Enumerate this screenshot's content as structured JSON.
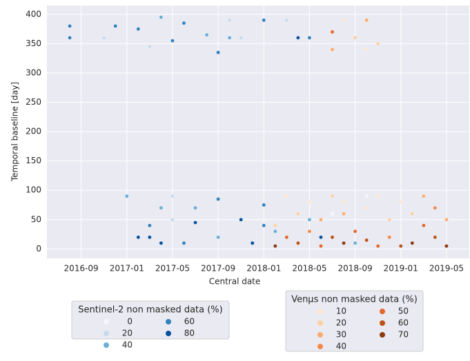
{
  "chart_data": {
    "type": "scatter",
    "x_label": "Central date",
    "y_label": "Temporal baseline [day]",
    "xlim": [
      "2016-06",
      "2019-07"
    ],
    "ylim": [
      -16,
      415
    ],
    "xticks": [
      "2016-09",
      "2017-01",
      "2017-05",
      "2017-09",
      "2018-01",
      "2018-05",
      "2018-09",
      "2019-01",
      "2019-05"
    ],
    "yticks": [
      0,
      50,
      100,
      150,
      200,
      250,
      300,
      350,
      400
    ],
    "grid": true,
    "background": "#eaeaf2",
    "series": [
      {
        "name": "Sentinel-2 non masked data (%)",
        "levels": [
          {
            "value": 0,
            "color": "#f4f6fa"
          },
          {
            "value": 20,
            "color": "#c6dbef"
          },
          {
            "value": 40,
            "color": "#6baed6"
          },
          {
            "value": 60,
            "color": "#3182bd"
          },
          {
            "value": 80,
            "color": "#08519c"
          }
        ],
        "x": [
          "2016-08",
          "2016-08",
          "2016-08",
          "2016-11",
          "2016-12",
          "2017-01",
          "2017-02",
          "2017-02",
          "2017-03",
          "2017-03",
          "2017-03",
          "2017-04",
          "2017-04",
          "2017-04",
          "2017-05",
          "2017-05",
          "2017-05",
          "2017-06",
          "2017-06",
          "2017-07",
          "2017-07",
          "2017-08",
          "2017-09",
          "2017-09",
          "2017-09",
          "2017-10",
          "2017-10",
          "2017-11",
          "2017-11",
          "2017-12",
          "2018-01",
          "2018-01",
          "2018-01",
          "2018-02",
          "2018-03",
          "2018-04",
          "2018-04",
          "2018-05",
          "2018-05",
          "2018-06",
          "2018-07",
          "2018-08",
          "2018-09",
          "2018-10"
        ],
        "values": [
          380,
          360,
          380,
          360,
          380,
          90,
          375,
          20,
          345,
          40,
          20,
          395,
          70,
          10,
          355,
          90,
          50,
          385,
          10,
          70,
          45,
          365,
          335,
          85,
          20,
          390,
          360,
          50,
          360,
          10,
          390,
          75,
          40,
          30,
          390,
          360,
          60,
          360,
          50,
          20,
          60,
          80,
          10,
          90
        ],
        "coverage": [
          40,
          60,
          60,
          20,
          60,
          40,
          60,
          80,
          20,
          60,
          80,
          40,
          40,
          80,
          60,
          20,
          20,
          60,
          60,
          40,
          80,
          40,
          60,
          60,
          40,
          20,
          40,
          80,
          20,
          80,
          60,
          60,
          60,
          40,
          20,
          80,
          0,
          60,
          40,
          80,
          0,
          20,
          40,
          0
        ]
      },
      {
        "name": "Venµs non masked data (%)",
        "levels": [
          {
            "value": 10,
            "color": "#fde5cd"
          },
          {
            "value": 20,
            "color": "#fdcfa0"
          },
          {
            "value": 30,
            "color": "#fcaa6e"
          },
          {
            "value": 40,
            "color": "#f4894a"
          },
          {
            "value": 50,
            "color": "#e3662a"
          },
          {
            "value": 60,
            "color": "#bd5118"
          },
          {
            "value": 70,
            "color": "#8c3a12"
          }
        ],
        "x": [
          "2018-02",
          "2018-02",
          "2018-03",
          "2018-03",
          "2018-04",
          "2018-04",
          "2018-05",
          "2018-05",
          "2018-06",
          "2018-06",
          "2018-07",
          "2018-07",
          "2018-07",
          "2018-07",
          "2018-08",
          "2018-08",
          "2018-08",
          "2018-08",
          "2018-09",
          "2018-09",
          "2018-10",
          "2018-10",
          "2018-10",
          "2018-10",
          "2018-11",
          "2018-11",
          "2018-11",
          "2018-12",
          "2018-12",
          "2019-01",
          "2019-01",
          "2019-02",
          "2019-02",
          "2019-03",
          "2019-03",
          "2019-04",
          "2019-04",
          "2019-05",
          "2019-05"
        ],
        "values": [
          5,
          40,
          90,
          20,
          60,
          10,
          30,
          80,
          5,
          50,
          90,
          340,
          370,
          20,
          390,
          60,
          10,
          80,
          360,
          30,
          390,
          340,
          70,
          15,
          350,
          90,
          5,
          50,
          20,
          80,
          5,
          60,
          10,
          90,
          40,
          70,
          20,
          50,
          5
        ],
        "coverage": [
          70,
          20,
          10,
          50,
          20,
          60,
          40,
          10,
          50,
          30,
          20,
          30,
          50,
          60,
          10,
          30,
          70,
          10,
          20,
          50,
          30,
          10,
          10,
          60,
          20,
          10,
          50,
          20,
          40,
          10,
          60,
          20,
          70,
          30,
          50,
          40,
          60,
          30,
          70
        ]
      }
    ]
  }
}
